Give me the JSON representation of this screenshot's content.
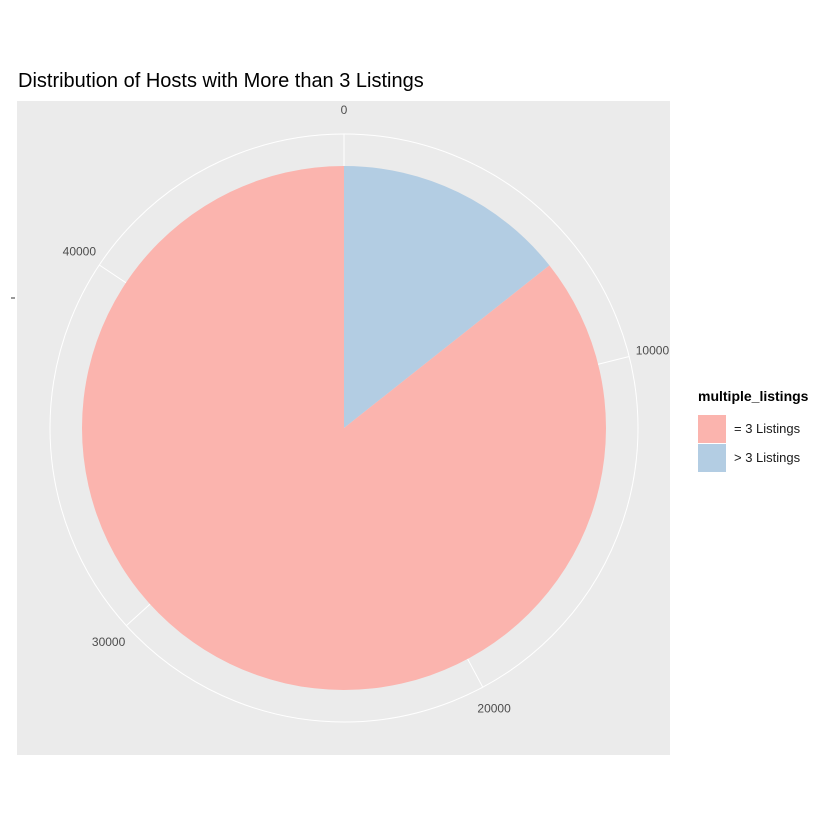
{
  "chart_data": {
    "type": "pie",
    "title": "Distribution of Hosts with More than 3 Listings",
    "legend_title": "multiple_listings",
    "legend_position": "right",
    "slices": [
      {
        "label": "= 3 Listings",
        "value": 40620,
        "color": "#FBB4AE"
      },
      {
        "label": "> 3 Listings",
        "value": 6800,
        "color": "#B3CDE3"
      }
    ],
    "axis_ticks": [
      0,
      10000,
      20000,
      30000,
      40000
    ],
    "axis_tick_labels": [
      "0",
      "10000",
      "20000",
      "30000",
      "40000"
    ],
    "panel_background": "#EBEBEB",
    "grid": true
  }
}
